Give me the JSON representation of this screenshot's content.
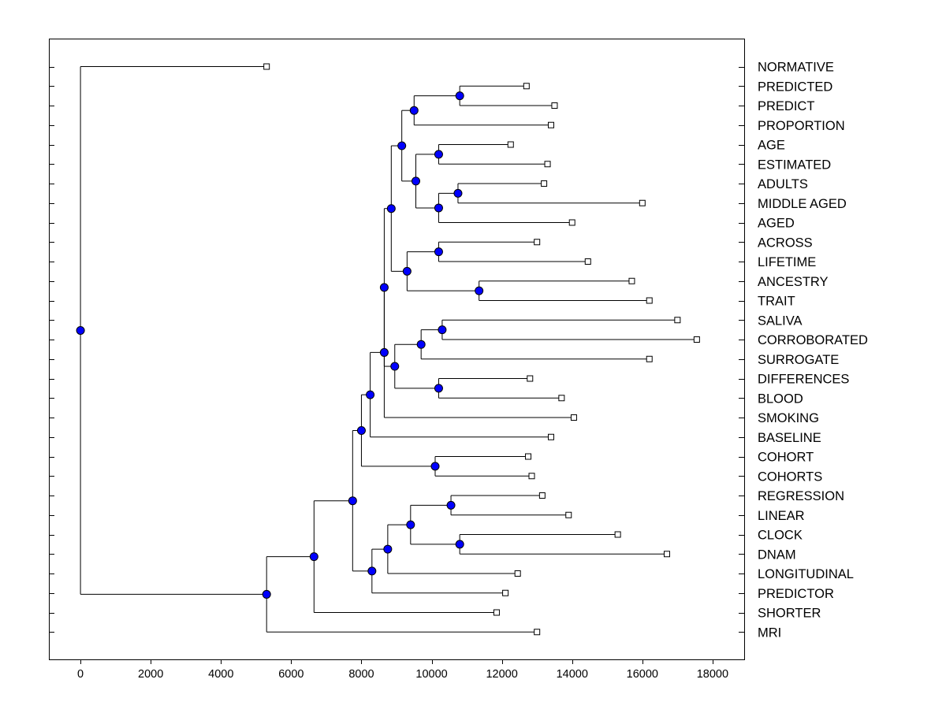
{
  "chart_data": {
    "type": "dendrogram",
    "title": "",
    "xlabel": "",
    "ylabel": "",
    "xlim": [
      -900,
      18900
    ],
    "x_ticks": [
      0,
      2000,
      4000,
      6000,
      8000,
      10000,
      12000,
      14000,
      16000,
      18000
    ],
    "grid": false,
    "colors": {
      "node": "#0000ff",
      "line": "#000000",
      "leaf": "#ffffff"
    },
    "leaves": [
      {
        "label": "NORMATIVE",
        "value": 5300
      },
      {
        "label": "PREDICTED",
        "value": 12700
      },
      {
        "label": "PREDICT",
        "value": 13500
      },
      {
        "label": "PROPORTION",
        "value": 13400
      },
      {
        "label": "AGE",
        "value": 12250
      },
      {
        "label": "ESTIMATED",
        "value": 13300
      },
      {
        "label": "ADULTS",
        "value": 13200
      },
      {
        "label": "MIDDLE AGED",
        "value": 16000
      },
      {
        "label": "AGED",
        "value": 14000
      },
      {
        "label": "ACROSS",
        "value": 13000
      },
      {
        "label": "LIFETIME",
        "value": 14450
      },
      {
        "label": "ANCESTRY",
        "value": 15700
      },
      {
        "label": "TRAIT",
        "value": 16200
      },
      {
        "label": "SALIVA",
        "value": 17000
      },
      {
        "label": "CORROBORATED",
        "value": 17550
      },
      {
        "label": "SURROGATE",
        "value": 16200
      },
      {
        "label": "DIFFERENCES",
        "value": 12800
      },
      {
        "label": "BLOOD",
        "value": 13700
      },
      {
        "label": "SMOKING",
        "value": 14050
      },
      {
        "label": "BASELINE",
        "value": 13400
      },
      {
        "label": "COHORT",
        "value": 12750
      },
      {
        "label": "COHORTS",
        "value": 12850
      },
      {
        "label": "REGRESSION",
        "value": 13150
      },
      {
        "label": "LINEAR",
        "value": 13900
      },
      {
        "label": "CLOCK",
        "value": 15300
      },
      {
        "label": "DNAM",
        "value": 16700
      },
      {
        "label": "LONGITUDINAL",
        "value": 12450
      },
      {
        "label": "PREDICTOR",
        "value": 12100
      },
      {
        "label": "SHORTER",
        "value": 11850
      },
      {
        "label": "MRI",
        "value": 13000
      }
    ],
    "merges": [
      {
        "id": "m1",
        "value": 10800,
        "children": [
          "PREDICTED",
          "PREDICT"
        ]
      },
      {
        "id": "m2",
        "value": 9500,
        "children": [
          "m1",
          "PROPORTION"
        ]
      },
      {
        "id": "m3",
        "value": 10200,
        "children": [
          "AGE",
          "ESTIMATED"
        ]
      },
      {
        "id": "m4",
        "value": 10750,
        "children": [
          "ADULTS",
          "MIDDLE AGED"
        ]
      },
      {
        "id": "m5",
        "value": 10200,
        "children": [
          "m4",
          "AGED"
        ]
      },
      {
        "id": "m6",
        "value": 9550,
        "children": [
          "m3",
          "m5"
        ]
      },
      {
        "id": "m7",
        "value": 9150,
        "children": [
          "m2",
          "m6"
        ]
      },
      {
        "id": "m8",
        "value": 10200,
        "children": [
          "ACROSS",
          "LIFETIME"
        ]
      },
      {
        "id": "m9",
        "value": 11350,
        "children": [
          "ANCESTRY",
          "TRAIT"
        ]
      },
      {
        "id": "m10",
        "value": 9300,
        "children": [
          "m8",
          "m9"
        ]
      },
      {
        "id": "m11",
        "value": 8850,
        "children": [
          "m7",
          "m10"
        ]
      },
      {
        "id": "m12",
        "value": 10300,
        "children": [
          "SALIVA",
          "CORROBORATED"
        ]
      },
      {
        "id": "m13",
        "value": 9700,
        "children": [
          "m12",
          "SURROGATE"
        ]
      },
      {
        "id": "m14",
        "value": 10200,
        "children": [
          "DIFFERENCES",
          "BLOOD"
        ]
      },
      {
        "id": "m15",
        "value": 8950,
        "children": [
          "m13",
          "m14"
        ]
      },
      {
        "id": "m16",
        "value": 8650,
        "children": [
          "m11",
          "m15"
        ]
      },
      {
        "id": "m17",
        "value": 8650,
        "children": [
          "m16",
          "SMOKING"
        ]
      },
      {
        "id": "m18",
        "value": 8250,
        "children": [
          "m17",
          "BASELINE"
        ]
      },
      {
        "id": "m19",
        "value": 10100,
        "children": [
          "COHORT",
          "COHORTS"
        ]
      },
      {
        "id": "m20",
        "value": 8000,
        "children": [
          "m18",
          "m19"
        ]
      },
      {
        "id": "m21",
        "value": 10550,
        "children": [
          "REGRESSION",
          "LINEAR"
        ]
      },
      {
        "id": "m22",
        "value": 10800,
        "children": [
          "CLOCK",
          "DNAM"
        ]
      },
      {
        "id": "m23",
        "value": 9400,
        "children": [
          "m21",
          "m22"
        ]
      },
      {
        "id": "m24",
        "value": 8750,
        "children": [
          "m23",
          "LONGITUDINAL"
        ]
      },
      {
        "id": "m25",
        "value": 8300,
        "children": [
          "m24",
          "PREDICTOR"
        ]
      },
      {
        "id": "m26",
        "value": 7750,
        "children": [
          "m20",
          "m25"
        ]
      },
      {
        "id": "m27",
        "value": 6650,
        "children": [
          "m26",
          "SHORTER"
        ]
      },
      {
        "id": "m28",
        "value": 5300,
        "children": [
          "m27",
          "MRI"
        ]
      },
      {
        "id": "m29",
        "value": 0,
        "children": [
          "NORMATIVE",
          "m28"
        ]
      }
    ]
  }
}
